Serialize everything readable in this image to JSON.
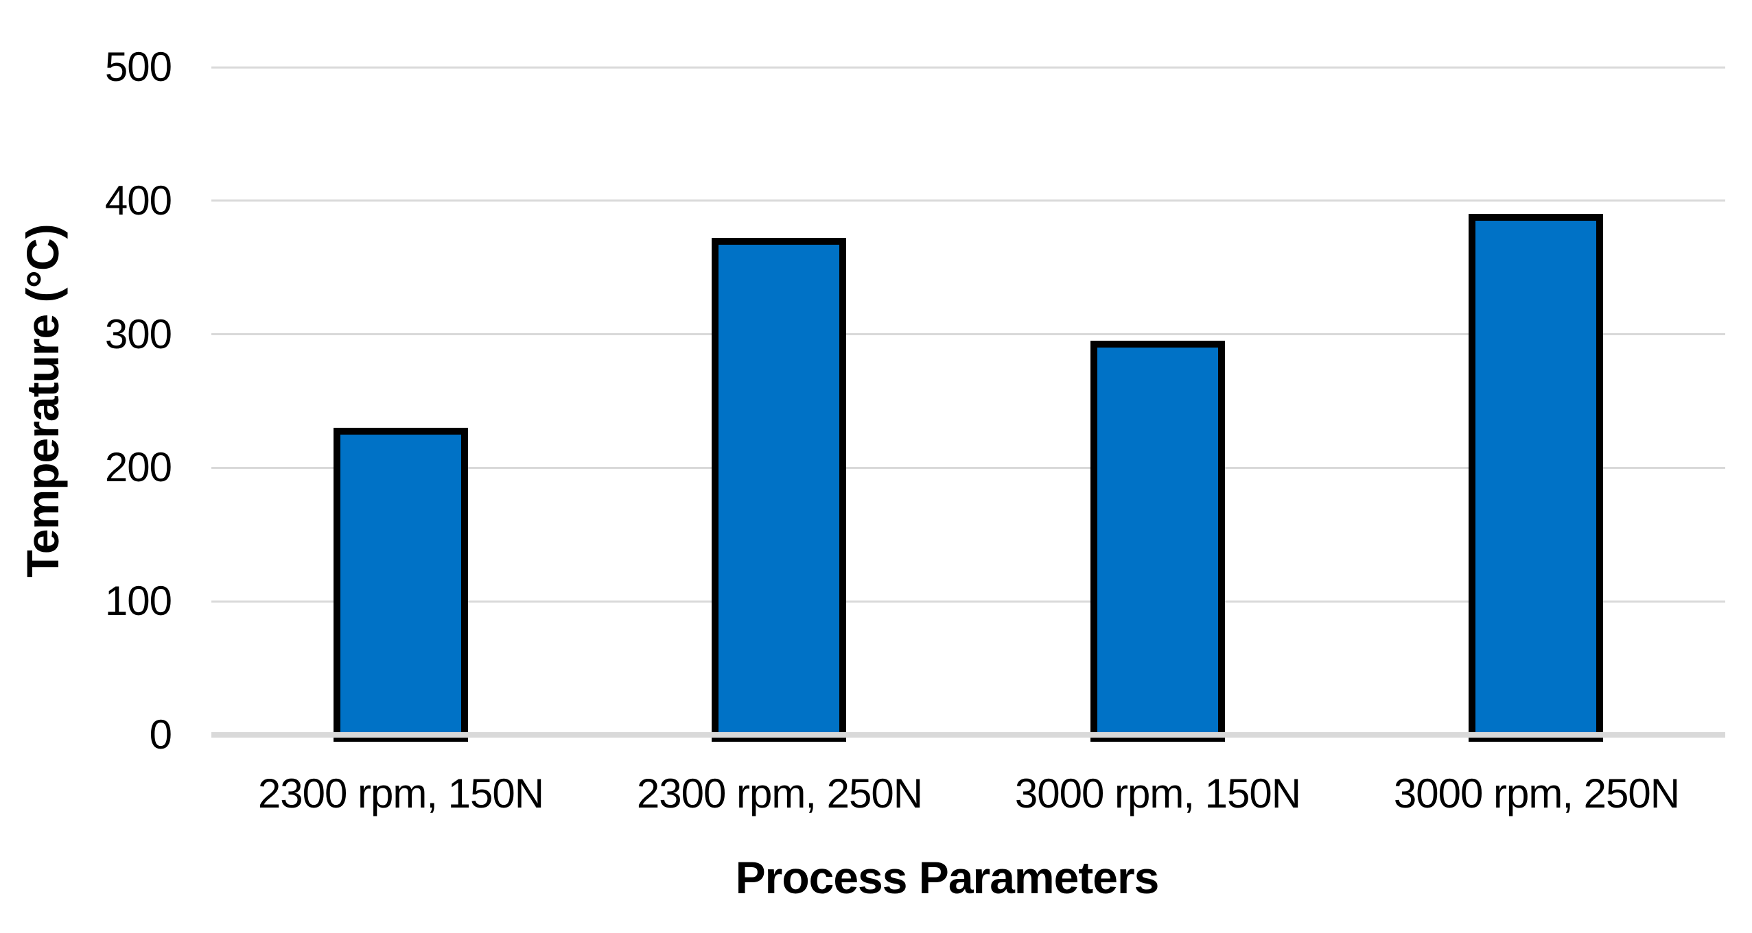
{
  "chart_data": {
    "type": "bar",
    "title": "",
    "categories": [
      "2300 rpm, 150N",
      "2300 rpm, 250N",
      "3000 rpm, 150N",
      "3000 rpm, 250N"
    ],
    "values": [
      230,
      372,
      295,
      390
    ],
    "xlabel": "Process Parameters",
    "ylabel": "Temperature (°C)",
    "ylim": [
      0,
      500
    ],
    "ytick_step": 100,
    "yticks": [
      "0",
      "100",
      "200",
      "300",
      "400",
      "500"
    ],
    "grid": "horizontal",
    "legend": "none",
    "colors": {
      "bar_fill": "#0072C6",
      "bar_border": "#000000",
      "gridline": "#D9D9D9",
      "zero_axis_line": "#D9D9D9",
      "text": "#000000",
      "background": "#FFFFFF"
    }
  }
}
